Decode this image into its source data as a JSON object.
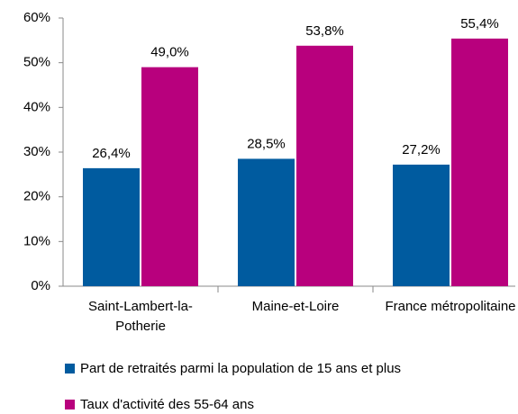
{
  "chart_data": {
    "type": "bar",
    "categories": [
      "Saint-Lambert-la-Potherie",
      "Maine-et-Loire",
      "France métropolitaine"
    ],
    "series": [
      {
        "name": "Part de retraités parmi la population de 15 ans et plus",
        "color": "#005b9f",
        "values": [
          26.4,
          28.5,
          27.2
        ],
        "value_labels": [
          "26,4%",
          "28,5%",
          "27,2%"
        ]
      },
      {
        "name": "Taux d'activité des 55-64 ans",
        "color": "#b8007d",
        "values": [
          49.0,
          53.8,
          55.4
        ],
        "value_labels": [
          "49,0%",
          "53,8%",
          "55,4%"
        ]
      }
    ],
    "ylim": [
      0,
      60
    ],
    "yticks": [
      {
        "value": 0,
        "label": "0%"
      },
      {
        "value": 10,
        "label": "10%"
      },
      {
        "value": 20,
        "label": "20%"
      },
      {
        "value": 30,
        "label": "30%"
      },
      {
        "value": 40,
        "label": "40%"
      },
      {
        "value": 50,
        "label": "50%"
      },
      {
        "value": 60,
        "label": "60%"
      }
    ],
    "grid": false,
    "legend": "bottom"
  }
}
